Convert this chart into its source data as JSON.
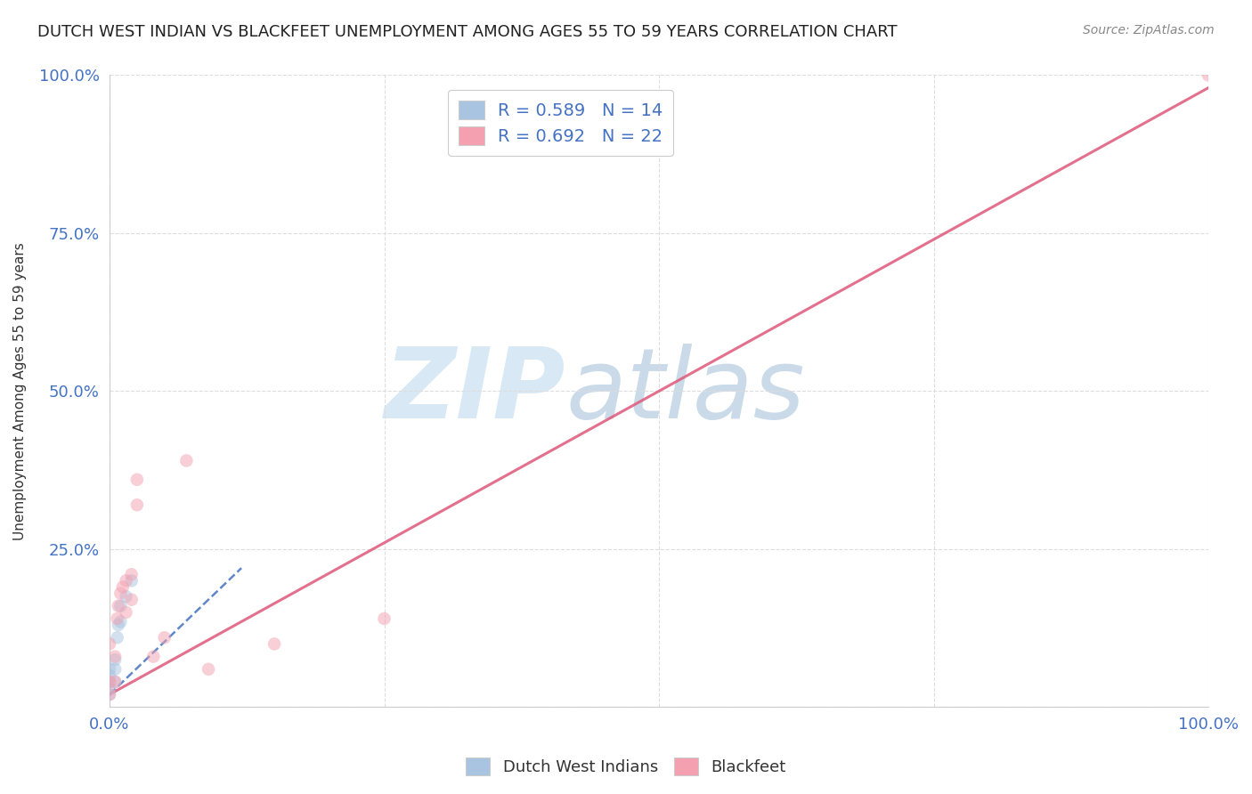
{
  "title": "DUTCH WEST INDIAN VS BLACKFEET UNEMPLOYMENT AMONG AGES 55 TO 59 YEARS CORRELATION CHART",
  "source": "Source: ZipAtlas.com",
  "ylabel": "Unemployment Among Ages 55 to 59 years",
  "xlim": [
    0.0,
    1.0
  ],
  "ylim": [
    0.0,
    1.0
  ],
  "xticks": [
    0.0,
    0.25,
    0.5,
    0.75,
    1.0
  ],
  "yticks": [
    0.0,
    0.25,
    0.5,
    0.75,
    1.0
  ],
  "xticklabels": [
    "0.0%",
    "",
    "",
    "",
    "100.0%"
  ],
  "yticklabels": [
    "",
    "25.0%",
    "50.0%",
    "75.0%",
    "100.0%"
  ],
  "watermark_zip": "ZIP",
  "watermark_atlas": "atlas",
  "legend_entries": [
    {
      "label": "R = 0.589   N = 14",
      "color": "#a8c4e0"
    },
    {
      "label": "R = 0.692   N = 22",
      "color": "#f4a0b0"
    }
  ],
  "dutch_west_indians": {
    "x": [
      0.0,
      0.0,
      0.0,
      0.0,
      0.0,
      0.005,
      0.005,
      0.005,
      0.007,
      0.008,
      0.01,
      0.01,
      0.015,
      0.02
    ],
    "y": [
      0.02,
      0.03,
      0.04,
      0.05,
      0.06,
      0.04,
      0.06,
      0.075,
      0.11,
      0.13,
      0.135,
      0.16,
      0.175,
      0.2
    ],
    "color": "#a8c4e0",
    "R": 0.589,
    "N": 14,
    "line_x0": 0.0,
    "line_y0": 0.02,
    "line_x1": 0.12,
    "line_y1": 0.22,
    "line_color": "#4472c4",
    "line_style": "--"
  },
  "blackfeet": {
    "x": [
      0.0,
      0.0,
      0.0,
      0.005,
      0.005,
      0.007,
      0.008,
      0.01,
      0.012,
      0.015,
      0.015,
      0.02,
      0.02,
      0.025,
      0.025,
      0.04,
      0.05,
      0.07,
      0.09,
      0.15,
      0.25,
      1.0
    ],
    "y": [
      0.02,
      0.04,
      0.1,
      0.04,
      0.08,
      0.14,
      0.16,
      0.18,
      0.19,
      0.15,
      0.2,
      0.17,
      0.21,
      0.32,
      0.36,
      0.08,
      0.11,
      0.39,
      0.06,
      0.1,
      0.14,
      1.0
    ],
    "color": "#f4a0b0",
    "R": 0.692,
    "N": 22,
    "line_x0": 0.0,
    "line_y0": 0.02,
    "line_x1": 1.0,
    "line_y1": 0.98,
    "line_color": "#e06080",
    "line_style": "-"
  },
  "title_fontsize": 13,
  "tick_color": "#4472c4",
  "grid_color": "#dddddd",
  "background_color": "#ffffff",
  "dot_size": 110,
  "dot_alpha": 0.5
}
